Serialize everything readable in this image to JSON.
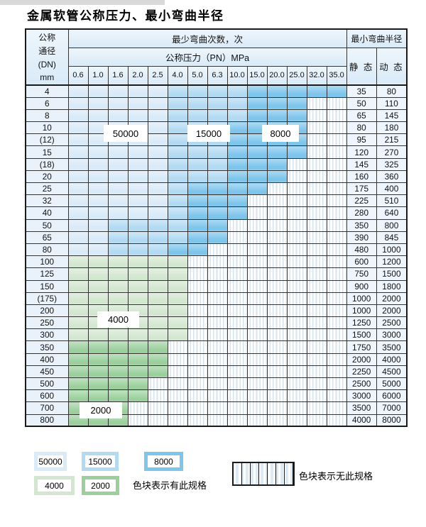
{
  "title": "金属软管公称压力、最小弯曲半径",
  "colors": {
    "50000": "#d9eaf8",
    "15000": "#b2daf3",
    "8000": "#7ec5ec",
    "4000": "#d3e7d0",
    "2000": "#9bd09d"
  },
  "table": {
    "header": {
      "dn_lines": [
        "公称",
        "通径",
        "(DN)",
        "mm"
      ],
      "cycles_label": "最少弯曲次数，次",
      "radius_label": "最小弯曲半径",
      "pressure_label": "公称压力（PN）MPa",
      "static_label": "静 态",
      "dynamic_label": "动 态",
      "pressure_columns": [
        "0.6",
        "1.0",
        "1.6",
        "2.0",
        "2.5",
        "4.0",
        "5.0",
        "6.3",
        "10.0",
        "15.0",
        "20.0",
        "25.0",
        "32.0",
        "35.0"
      ]
    },
    "overlay_labels": [
      "50000",
      "15000",
      "8000",
      "4000",
      "2000"
    ],
    "rows": [
      {
        "dn": "4",
        "static": "35",
        "dynamic": "80",
        "zones": [
          {
            "cycles": "50000",
            "from": "0.6",
            "to": "2.5"
          },
          {
            "cycles": "15000",
            "from": "4.0",
            "to": "10.0"
          },
          {
            "cycles": "8000",
            "from": "15.0",
            "to": "35.0"
          }
        ]
      },
      {
        "dn": "6",
        "static": "50",
        "dynamic": "110",
        "zones": [
          {
            "cycles": "50000",
            "from": "0.6",
            "to": "2.5"
          },
          {
            "cycles": "15000",
            "from": "4.0",
            "to": "10.0"
          },
          {
            "cycles": "8000",
            "from": "15.0",
            "to": "25.0"
          }
        ]
      },
      {
        "dn": "8",
        "static": "65",
        "dynamic": "145",
        "zones": [
          {
            "cycles": "50000",
            "from": "0.6",
            "to": "2.5"
          },
          {
            "cycles": "15000",
            "from": "4.0",
            "to": "10.0"
          },
          {
            "cycles": "8000",
            "from": "15.0",
            "to": "25.0"
          }
        ]
      },
      {
        "dn": "10",
        "static": "80",
        "dynamic": "180",
        "zones": [
          {
            "cycles": "50000",
            "from": "0.6",
            "to": "2.5"
          },
          {
            "cycles": "15000",
            "from": "4.0",
            "to": "6.3"
          },
          {
            "cycles": "8000",
            "from": "10.0",
            "to": "25.0"
          }
        ]
      },
      {
        "dn": "(12)",
        "static": "95",
        "dynamic": "215",
        "zones": [
          {
            "cycles": "50000",
            "from": "0.6",
            "to": "2.5"
          },
          {
            "cycles": "15000",
            "from": "4.0",
            "to": "6.3"
          },
          {
            "cycles": "8000",
            "from": "10.0",
            "to": "25.0"
          }
        ]
      },
      {
        "dn": "15",
        "static": "120",
        "dynamic": "270",
        "zones": [
          {
            "cycles": "50000",
            "from": "0.6",
            "to": "2.5"
          },
          {
            "cycles": "15000",
            "from": "4.0",
            "to": "6.3"
          },
          {
            "cycles": "8000",
            "from": "10.0",
            "to": "25.0"
          }
        ]
      },
      {
        "dn": "(18)",
        "static": "145",
        "dynamic": "325",
        "zones": [
          {
            "cycles": "50000",
            "from": "0.6",
            "to": "2.5"
          },
          {
            "cycles": "15000",
            "from": "4.0",
            "to": "6.3"
          },
          {
            "cycles": "8000",
            "from": "10.0",
            "to": "20.0"
          }
        ]
      },
      {
        "dn": "20",
        "static": "160",
        "dynamic": "360",
        "zones": [
          {
            "cycles": "50000",
            "from": "0.6",
            "to": "2.5"
          },
          {
            "cycles": "15000",
            "from": "4.0",
            "to": "6.3"
          },
          {
            "cycles": "8000",
            "from": "10.0",
            "to": "20.0"
          }
        ]
      },
      {
        "dn": "25",
        "static": "175",
        "dynamic": "400",
        "zones": [
          {
            "cycles": "50000",
            "from": "0.6",
            "to": "2.5"
          },
          {
            "cycles": "15000",
            "from": "4.0",
            "to": "4.0"
          },
          {
            "cycles": "8000",
            "from": "5.0",
            "to": "15.0"
          }
        ]
      },
      {
        "dn": "32",
        "static": "225",
        "dynamic": "510",
        "zones": [
          {
            "cycles": "50000",
            "from": "0.6",
            "to": "2.5"
          },
          {
            "cycles": "15000",
            "from": "4.0",
            "to": "4.0"
          },
          {
            "cycles": "8000",
            "from": "5.0",
            "to": "10.0"
          }
        ]
      },
      {
        "dn": "40",
        "static": "280",
        "dynamic": "640",
        "zones": [
          {
            "cycles": "50000",
            "from": "0.6",
            "to": "2.5"
          },
          {
            "cycles": "15000",
            "from": "4.0",
            "to": "4.0"
          },
          {
            "cycles": "8000",
            "from": "5.0",
            "to": "10.0"
          }
        ]
      },
      {
        "dn": "50",
        "static": "350",
        "dynamic": "800",
        "zones": [
          {
            "cycles": "50000",
            "from": "0.6",
            "to": "1.0"
          },
          {
            "cycles": "15000",
            "from": "1.6",
            "to": "4.0"
          },
          {
            "cycles": "8000",
            "from": "5.0",
            "to": "6.3"
          }
        ]
      },
      {
        "dn": "65",
        "static": "390",
        "dynamic": "845",
        "zones": [
          {
            "cycles": "50000",
            "from": "0.6",
            "to": "1.0"
          },
          {
            "cycles": "15000",
            "from": "1.6",
            "to": "4.0"
          },
          {
            "cycles": "8000",
            "from": "5.0",
            "to": "6.3"
          }
        ]
      },
      {
        "dn": "80",
        "static": "480",
        "dynamic": "1000",
        "zones": [
          {
            "cycles": "50000",
            "from": "0.6",
            "to": "1.0"
          },
          {
            "cycles": "15000",
            "from": "1.6",
            "to": "2.5"
          },
          {
            "cycles": "8000",
            "from": "4.0",
            "to": "5.0"
          }
        ]
      },
      {
        "dn": "100",
        "static": "600",
        "dynamic": "1200",
        "zones": [
          {
            "cycles": "4000",
            "from": "0.6",
            "to": "4.0"
          }
        ]
      },
      {
        "dn": "125",
        "static": "750",
        "dynamic": "1500",
        "zones": [
          {
            "cycles": "4000",
            "from": "0.6",
            "to": "4.0"
          }
        ]
      },
      {
        "dn": "150",
        "static": "900",
        "dynamic": "1800",
        "zones": [
          {
            "cycles": "4000",
            "from": "0.6",
            "to": "4.0"
          }
        ]
      },
      {
        "dn": "(175)",
        "static": "1000",
        "dynamic": "2000",
        "zones": [
          {
            "cycles": "4000",
            "from": "0.6",
            "to": "4.0"
          }
        ]
      },
      {
        "dn": "200",
        "static": "1000",
        "dynamic": "2000",
        "zones": [
          {
            "cycles": "4000",
            "from": "0.6",
            "to": "4.0"
          }
        ]
      },
      {
        "dn": "250",
        "static": "1250",
        "dynamic": "2500",
        "zones": [
          {
            "cycles": "4000",
            "from": "0.6",
            "to": "4.0"
          }
        ]
      },
      {
        "dn": "300",
        "static": "1500",
        "dynamic": "3000",
        "zones": [
          {
            "cycles": "4000",
            "from": "0.6",
            "to": "4.0"
          }
        ]
      },
      {
        "dn": "350",
        "static": "1750",
        "dynamic": "3500",
        "zones": [
          {
            "cycles": "2000",
            "from": "0.6",
            "to": "2.5"
          }
        ]
      },
      {
        "dn": "400",
        "static": "2000",
        "dynamic": "4000",
        "zones": [
          {
            "cycles": "2000",
            "from": "0.6",
            "to": "2.5"
          }
        ]
      },
      {
        "dn": "450",
        "static": "2250",
        "dynamic": "4500",
        "zones": [
          {
            "cycles": "2000",
            "from": "0.6",
            "to": "2.5"
          }
        ]
      },
      {
        "dn": "500",
        "static": "2500",
        "dynamic": "5000",
        "zones": [
          {
            "cycles": "2000",
            "from": "0.6",
            "to": "2.0"
          }
        ]
      },
      {
        "dn": "600",
        "static": "3000",
        "dynamic": "6000",
        "zones": [
          {
            "cycles": "2000",
            "from": "0.6",
            "to": "2.0"
          }
        ]
      },
      {
        "dn": "700",
        "static": "3500",
        "dynamic": "7000",
        "zones": [
          {
            "cycles": "2000",
            "from": "0.6",
            "to": "1.6"
          }
        ]
      },
      {
        "dn": "800",
        "static": "4000",
        "dynamic": "8000",
        "zones": [
          {
            "cycles": "2000",
            "from": "0.6",
            "to": "1.6"
          }
        ]
      }
    ]
  },
  "legend": {
    "present_items": [
      "50000",
      "15000",
      "8000",
      "4000",
      "2000"
    ],
    "present_label": "色块表示有此规格",
    "absent_label": "色块表示无此规格"
  }
}
